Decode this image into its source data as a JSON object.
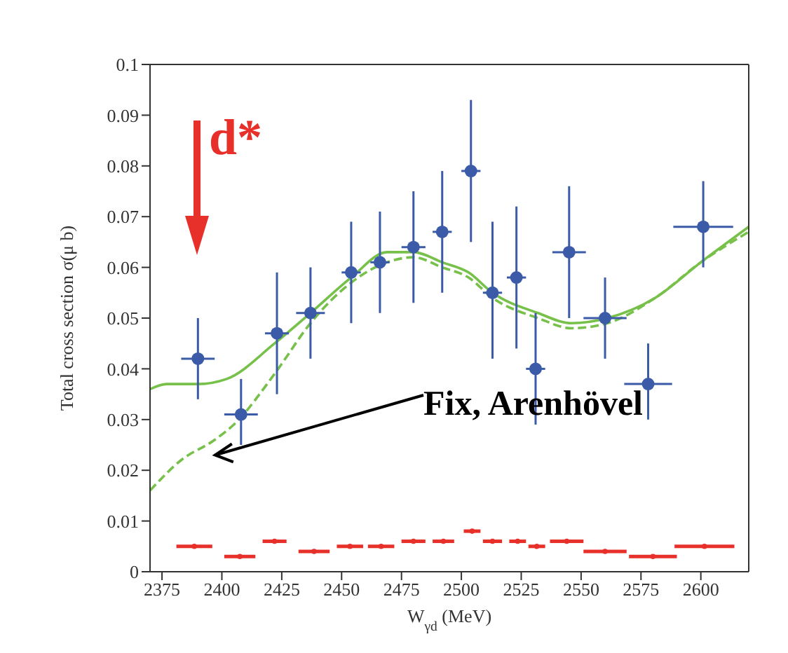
{
  "chart_data": {
    "type": "scatter",
    "xlabel": "W$_{γd}$ (MeV)",
    "ylabel": "Total cross section σ(μ b)",
    "annotations": [
      "d*",
      "Fix, Arenhövel"
    ],
    "xlim": [
      2370,
      2620
    ],
    "ylim": [
      0,
      0.1
    ],
    "xticks": [
      2375,
      2400,
      2425,
      2450,
      2475,
      2500,
      2525,
      2550,
      2575,
      2600
    ],
    "yticks": [
      0,
      0.01,
      0.02,
      0.03,
      0.04,
      0.05,
      0.06,
      0.07,
      0.08,
      0.09,
      0.1
    ],
    "series": [
      {
        "type": "line",
        "color": "#77c04a",
        "line_style": "solid",
        "marker": "none",
        "x": [
          2370,
          2377,
          2390,
          2402,
          2422,
          2437,
          2454,
          2469,
          2480,
          2492,
          2503,
          2513,
          2532,
          2546,
          2561,
          2581,
          2600,
          2620
        ],
        "values": [
          0.036,
          0.037,
          0.037,
          0.038,
          0.045,
          0.051,
          0.058,
          0.063,
          0.063,
          0.061,
          0.059,
          0.055,
          0.051,
          0.049,
          0.05,
          0.054,
          0.061,
          0.068
        ]
      },
      {
        "type": "line",
        "color": "#77c04a",
        "line_style": "dashed",
        "marker": "none",
        "x": [
          2370,
          2383,
          2397,
          2405,
          2422,
          2437,
          2454,
          2469,
          2480,
          2492,
          2503,
          2513,
          2532,
          2546,
          2561,
          2581,
          2600,
          2620
        ],
        "values": [
          0.016,
          0.022,
          0.026,
          0.029,
          0.039,
          0.049,
          0.057,
          0.061,
          0.062,
          0.06,
          0.058,
          0.054,
          0.05,
          0.048,
          0.049,
          0.054,
          0.061,
          0.067
        ]
      },
      {
        "color": "#e8302a",
        "x": [
          2388.5,
          2407.5,
          2422,
          2438.5,
          2453.5,
          2466.5,
          2480,
          2492.5,
          2504.5,
          2513,
          2523.5,
          2531.5,
          2544,
          2560,
          2580,
          2601.5
        ],
        "values": [
          0.005,
          0.003,
          0.006,
          0.004,
          0.005,
          0.005,
          0.006,
          0.006,
          0.008,
          0.006,
          0.006,
          0.005,
          0.006,
          0.004,
          0.003,
          0.005
        ],
        "xerrors": [
          7.5,
          6.5,
          5,
          6.5,
          5.5,
          5.5,
          5,
          4.5,
          3.5,
          4,
          3.5,
          3.5,
          7,
          9,
          10,
          12.5
        ]
      },
      {
        "color": "#3b5ba8",
        "marker": "circle",
        "x": [
          2390,
          2408,
          2423,
          2437,
          2454,
          2466,
          2480,
          2492,
          2504,
          2513,
          2523,
          2531,
          2545,
          2560,
          2578,
          2601
        ],
        "values": [
          0.042,
          0.031,
          0.047,
          0.051,
          0.059,
          0.061,
          0.064,
          0.067,
          0.079,
          0.055,
          0.058,
          0.04,
          0.063,
          0.05,
          0.037,
          0.068
        ],
        "errors": [
          [
            0.034,
            0.05
          ],
          [
            0.025,
            0.038
          ],
          [
            0.035,
            0.059
          ],
          [
            0.042,
            0.06
          ],
          [
            0.049,
            0.069
          ],
          [
            0.051,
            0.071
          ],
          [
            0.053,
            0.075
          ],
          [
            0.055,
            0.079
          ],
          [
            0.065,
            0.093
          ],
          [
            0.042,
            0.069
          ],
          [
            0.044,
            0.072
          ],
          [
            0.029,
            0.051
          ],
          [
            0.05,
            0.076
          ],
          [
            0.042,
            0.058
          ],
          [
            0.03,
            0.045
          ],
          [
            0.06,
            0.077
          ]
        ],
        "xerrors": [
          7,
          7,
          5,
          6,
          4,
          4,
          5,
          4,
          4,
          4,
          4,
          4,
          7,
          9,
          10,
          12.5
        ]
      }
    ]
  }
}
